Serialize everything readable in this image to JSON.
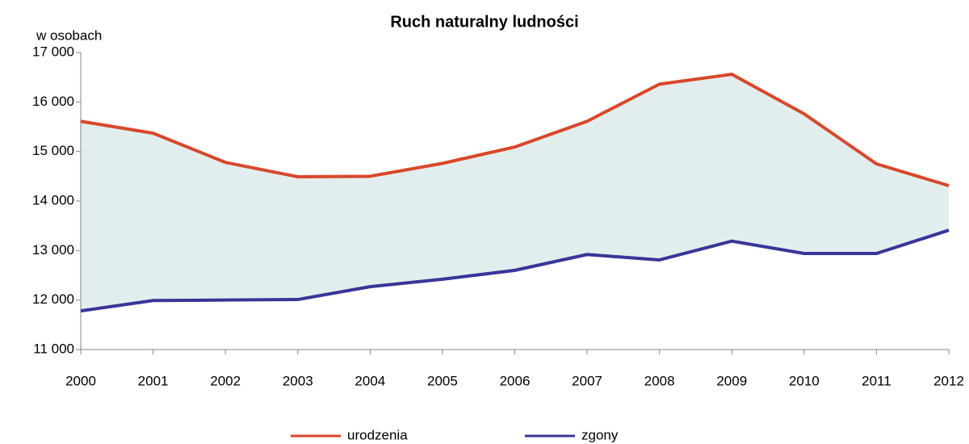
{
  "chart_data": {
    "type": "line",
    "title": "Ruch naturalny ludności",
    "y_label": "w osobach",
    "categories": [
      "2000",
      "2001",
      "2002",
      "2003",
      "2004",
      "2005",
      "2006",
      "2007",
      "2008",
      "2009",
      "2010",
      "2011",
      "2012"
    ],
    "series": [
      {
        "name": "urodzenia",
        "color": "#d9472b",
        "values": [
          15610,
          15370,
          14780,
          14490,
          14500,
          14760,
          15090,
          15610,
          16360,
          16560,
          15760,
          14750,
          14310
        ]
      },
      {
        "name": "zgony",
        "color": "#3a3598",
        "values": [
          11780,
          11990,
          12000,
          12010,
          12270,
          12420,
          12600,
          12920,
          12810,
          13190,
          12940,
          12940,
          13410
        ]
      }
    ],
    "fill_between": "#e2eeee",
    "ylim": [
      11000,
      17000
    ],
    "yticks": [
      {
        "value": 11000,
        "label": "11 000"
      },
      {
        "value": 12000,
        "label": "12 000"
      },
      {
        "value": 13000,
        "label": "13 000"
      },
      {
        "value": 14000,
        "label": "14 000"
      },
      {
        "value": 15000,
        "label": "15 000"
      },
      {
        "value": 16000,
        "label": "16 000"
      },
      {
        "value": 17000,
        "label": "17 000"
      }
    ],
    "legend": "bottom"
  }
}
